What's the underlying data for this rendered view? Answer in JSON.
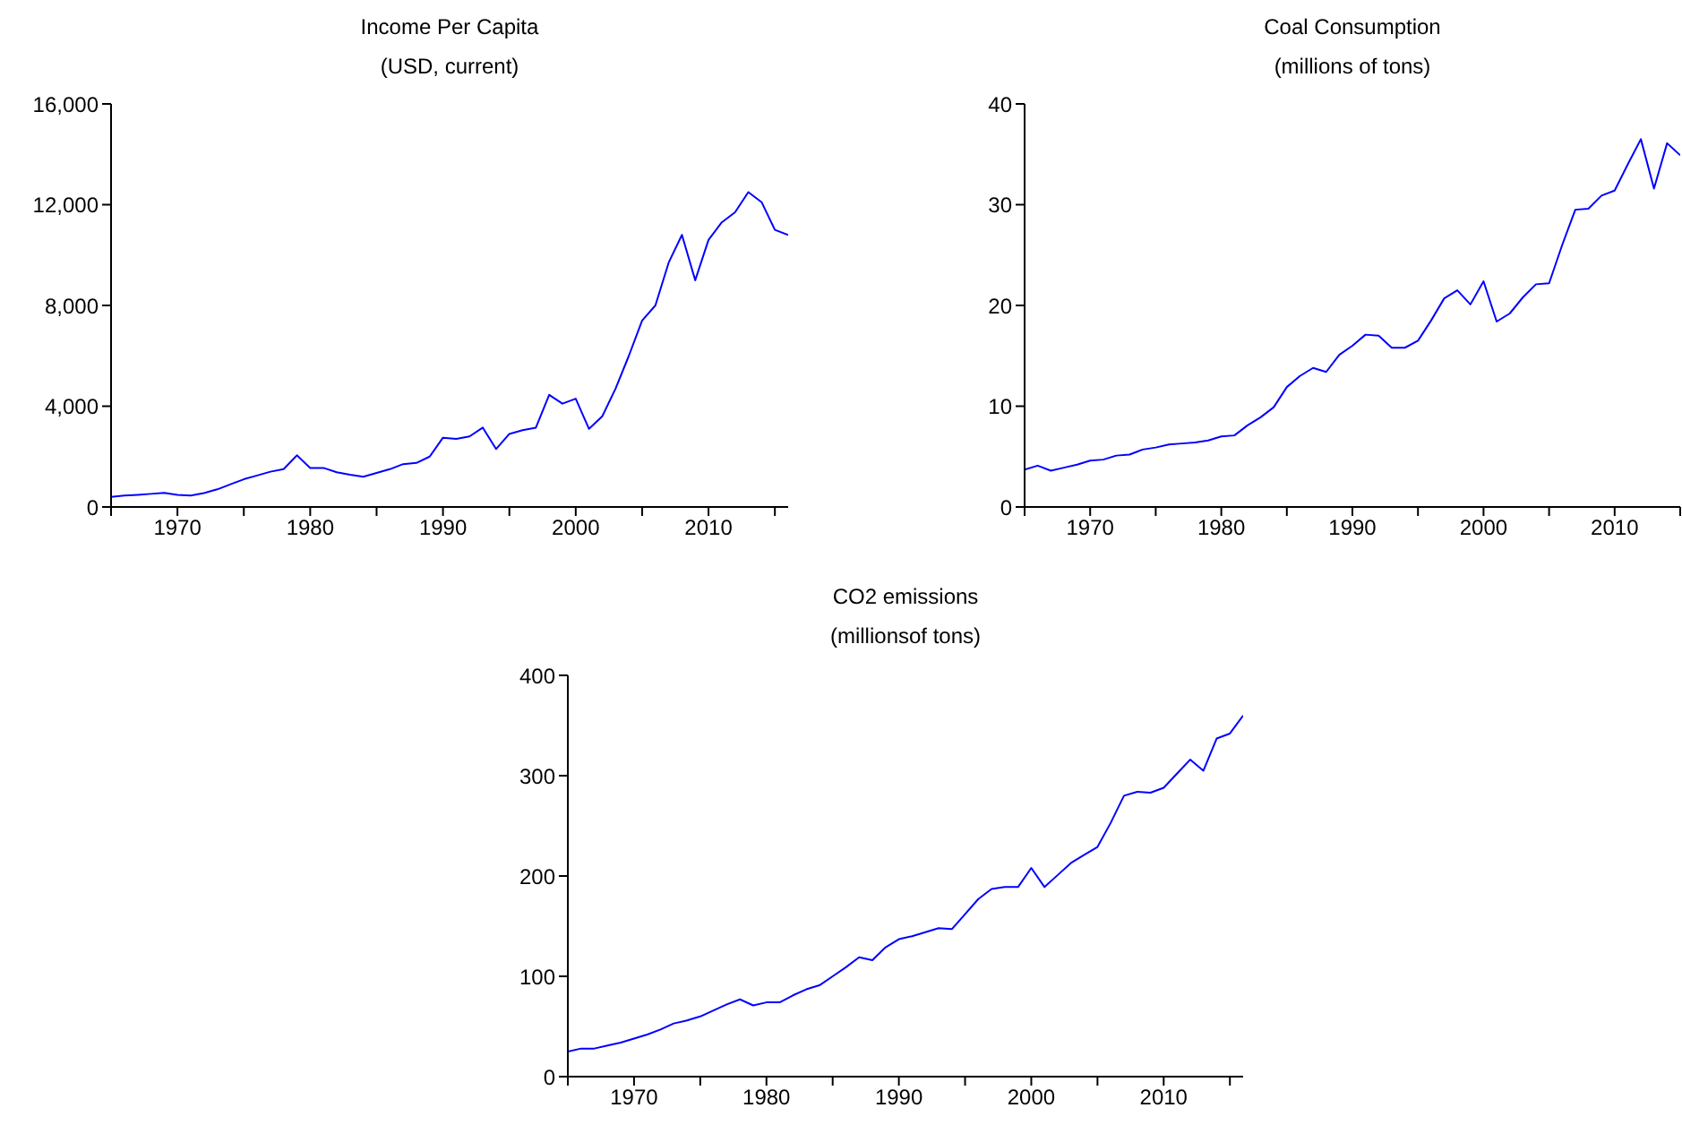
{
  "chart_data": [
    {
      "type": "line",
      "title": "Income Per Capita",
      "subtitle": "(USD, current)",
      "x": [
        1965,
        1966,
        1967,
        1968,
        1969,
        1970,
        1971,
        1972,
        1973,
        1974,
        1975,
        1976,
        1977,
        1978,
        1979,
        1980,
        1981,
        1982,
        1983,
        1984,
        1985,
        1986,
        1987,
        1988,
        1989,
        1990,
        1991,
        1992,
        1993,
        1994,
        1995,
        1996,
        1997,
        1998,
        1999,
        2000,
        2001,
        2002,
        2003,
        2004,
        2005,
        2006,
        2007,
        2008,
        2009,
        2010,
        2011,
        2012,
        2013,
        2014,
        2015,
        2016
      ],
      "values": [
        400,
        450,
        480,
        520,
        560,
        480,
        450,
        550,
        700,
        900,
        1100,
        1250,
        1400,
        1500,
        2050,
        1550,
        1550,
        1380,
        1280,
        1200,
        1350,
        1500,
        1700,
        1750,
        2000,
        2750,
        2700,
        2800,
        3150,
        2300,
        2900,
        3050,
        3150,
        4450,
        4100,
        4300,
        3100,
        3600,
        4700,
        6000,
        7400,
        8000,
        9700,
        10800,
        9000,
        10600,
        11300,
        11700,
        12500,
        12100,
        11000,
        10800
      ],
      "color": "#0000ff",
      "xlim": [
        1965,
        2016
      ],
      "xticks": [
        {
          "value": 1965,
          "label": null
        },
        1970,
        {
          "value": 1975,
          "label": null
        },
        1980,
        {
          "value": 1985,
          "label": null
        },
        1990,
        {
          "value": 1995,
          "label": null
        },
        2000,
        {
          "value": 2005,
          "label": null
        },
        2010,
        {
          "value": 2015,
          "label": null
        }
      ],
      "ylim": [
        0,
        16000
      ],
      "yticks": [
        {
          "value": 0,
          "label": "0"
        },
        {
          "value": 4000,
          "label": "4,000"
        },
        {
          "value": 8000,
          "label": "8,000"
        },
        {
          "value": 12000,
          "label": "12,000"
        },
        {
          "value": 16000,
          "label": "16,000"
        }
      ]
    },
    {
      "type": "line",
      "title": "Coal Consumption",
      "subtitle": "(millions of tons)",
      "x": [
        1965,
        1966,
        1967,
        1968,
        1969,
        1970,
        1971,
        1972,
        1973,
        1974,
        1975,
        1976,
        1977,
        1978,
        1979,
        1980,
        1981,
        1982,
        1983,
        1984,
        1985,
        1986,
        1987,
        1988,
        1989,
        1990,
        1991,
        1992,
        1993,
        1994,
        1995,
        1996,
        1997,
        1998,
        1999,
        2000,
        2001,
        2002,
        2003,
        2004,
        2005,
        2006,
        2007,
        2008,
        2009,
        2010,
        2011,
        2012,
        2013,
        2014,
        2015
      ],
      "values": [
        3.7,
        4.1,
        3.6,
        3.9,
        4.2,
        4.6,
        4.7,
        5.1,
        5.2,
        5.7,
        5.9,
        6.2,
        6.3,
        6.4,
        6.6,
        7.0,
        7.1,
        8.1,
        8.9,
        9.9,
        11.9,
        13.0,
        13.8,
        13.4,
        15.1,
        16.0,
        17.1,
        17.0,
        15.8,
        15.8,
        16.5,
        18.5,
        20.7,
        21.5,
        20.1,
        22.4,
        18.4,
        19.2,
        20.8,
        22.1,
        22.2,
        26.0,
        29.5,
        29.6,
        30.9,
        31.4,
        34.0,
        36.5,
        31.6,
        36.1,
        34.9
      ],
      "color": "#0000ff",
      "xlim": [
        1965,
        2015
      ],
      "xticks": [
        {
          "value": 1965,
          "label": null
        },
        1970,
        {
          "value": 1975,
          "label": null
        },
        1980,
        {
          "value": 1985,
          "label": null
        },
        1990,
        {
          "value": 1995,
          "label": null
        },
        2000,
        {
          "value": 2005,
          "label": null
        },
        2010,
        {
          "value": 2015,
          "label": null
        }
      ],
      "ylim": [
        0,
        40
      ],
      "yticks": [
        0,
        10,
        20,
        30,
        40
      ]
    },
    {
      "type": "line",
      "title": "CO2 emissions",
      "subtitle": "(millionsof tons)",
      "x": [
        1965,
        1966,
        1967,
        1968,
        1969,
        1970,
        1971,
        1972,
        1973,
        1974,
        1975,
        1976,
        1977,
        1978,
        1979,
        1980,
        1981,
        1982,
        1983,
        1984,
        1985,
        1986,
        1987,
        1988,
        1989,
        1990,
        1991,
        1992,
        1993,
        1994,
        1995,
        1996,
        1997,
        1998,
        1999,
        2000,
        2001,
        2002,
        2003,
        2004,
        2005,
        2006,
        2007,
        2008,
        2009,
        2010,
        2011,
        2012,
        2013,
        2014,
        2015,
        2016
      ],
      "values": [
        25,
        28,
        28,
        31,
        34,
        38,
        42,
        47,
        53,
        56,
        60,
        66,
        72,
        77,
        71,
        74,
        74,
        81,
        87,
        91,
        100,
        109,
        119,
        116,
        129,
        137,
        140,
        144,
        148,
        147,
        162,
        177,
        187,
        189,
        189,
        208,
        189,
        201,
        213,
        221,
        229,
        253,
        280,
        284,
        283,
        288,
        302,
        316,
        305,
        337,
        342,
        360
      ],
      "color": "#0000ff",
      "xlim": [
        1965,
        2016
      ],
      "xticks": [
        {
          "value": 1965,
          "label": null
        },
        1970,
        {
          "value": 1975,
          "label": null
        },
        1980,
        {
          "value": 1985,
          "label": null
        },
        1990,
        {
          "value": 1995,
          "label": null
        },
        2000,
        {
          "value": 2005,
          "label": null
        },
        2010,
        {
          "value": 2015,
          "label": null
        }
      ],
      "ylim": [
        0,
        400
      ],
      "yticks": [
        0,
        100,
        200,
        300,
        400
      ]
    }
  ]
}
